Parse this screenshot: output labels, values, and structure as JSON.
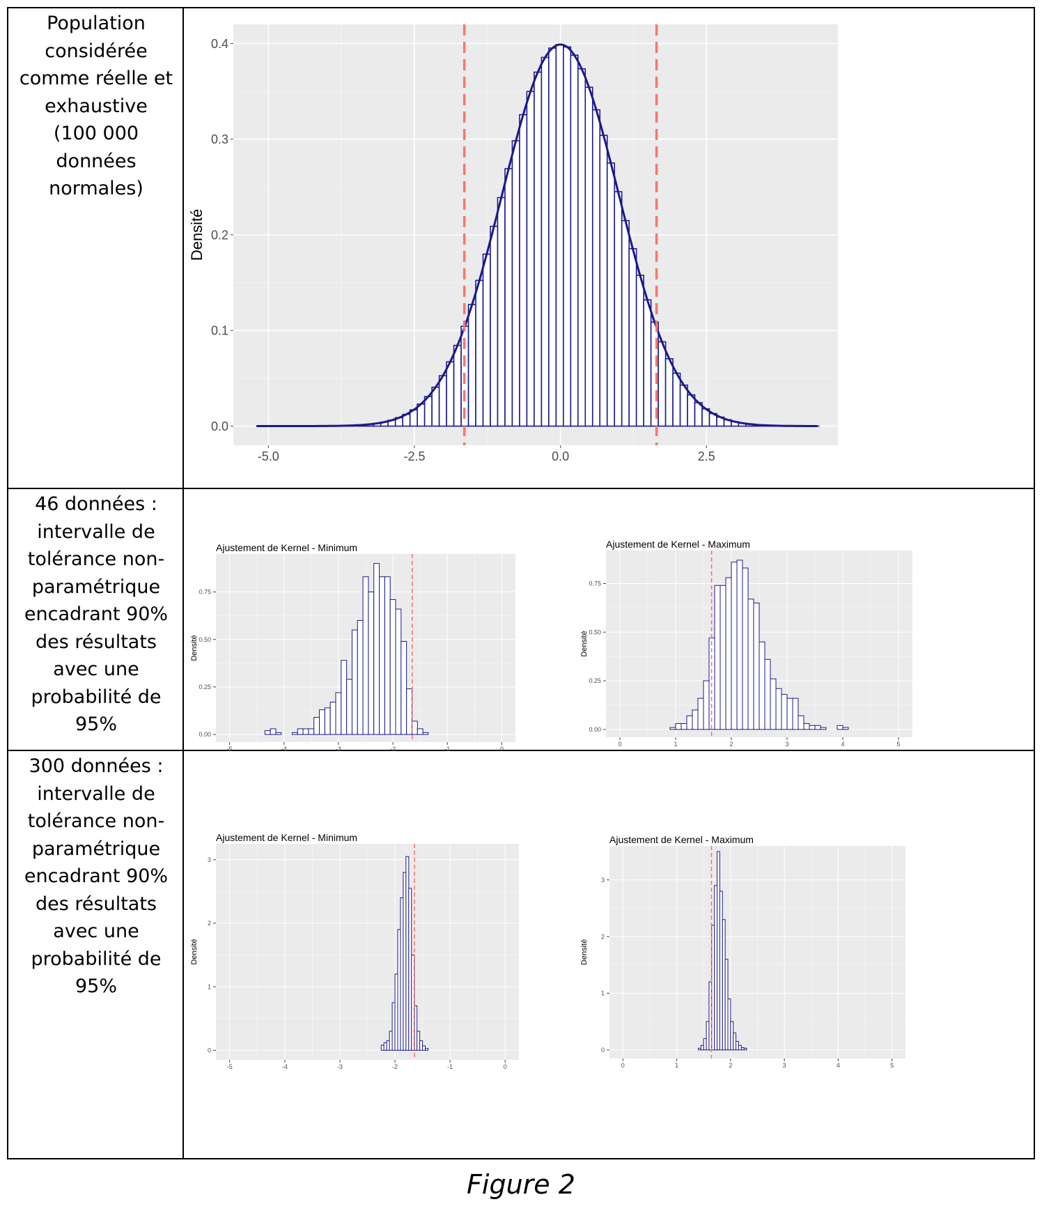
{
  "table": {
    "rows": [
      {
        "label": "Population\nconsidérée\ncomme réelle et\nexhaustive\n(100 000\ndonnées\nnormales)"
      },
      {
        "label": "46 données :\nintervalle de\ntolérance non-\nparamétrique\nencadrant 90%\ndes résultats\navec une\nprobabilité de\n95%"
      },
      {
        "label": "300 données :\nintervalle de\ntolérance non-\nparamétrique\nencadrant 90%\ndes résultats\navec une\nprobabilité de\n95%"
      }
    ]
  },
  "caption": "Figure 2",
  "colors": {
    "panel_bg": "#ebebeb",
    "grid": "#ffffff",
    "bar_stroke": "#1a1a8c",
    "curve": "#1a1a8c",
    "vline": "#f8766d"
  },
  "chart_data": [
    {
      "id": "population",
      "type": "bar",
      "title": "",
      "ylabel": "Densité",
      "xlabel": "",
      "bin_start": -5.2,
      "bin_width": 0.125,
      "bin_end": 4.4,
      "distribution": {
        "family": "normal",
        "mean": 0,
        "sd": 1
      },
      "density_curve": true,
      "vlines": [
        -1.645,
        1.645
      ],
      "xlim": [
        -5.6,
        4.75
      ],
      "ylim": [
        -0.02,
        0.42
      ],
      "xticks": [
        -5.0,
        -2.5,
        0.0,
        2.5
      ],
      "xtick_labels": [
        "-5.0",
        "-2.5",
        "0.0",
        "2.5"
      ],
      "yticks": [
        0.0,
        0.1,
        0.2,
        0.3,
        0.4
      ],
      "ytick_labels": [
        "0.0",
        "0.1",
        "0.2",
        "0.3",
        "0.4"
      ]
    },
    {
      "id": "min46",
      "type": "bar",
      "title": "Ajustement de Kernel - Minimum",
      "ylabel": "Densité",
      "xlabel": "",
      "x": [
        -4.3,
        -4.2,
        -4.1,
        -4.0,
        -3.9,
        -3.8,
        -3.7,
        -3.6,
        -3.5,
        -3.4,
        -3.3,
        -3.2,
        -3.1,
        -3.0,
        -2.9,
        -2.8,
        -2.7,
        -2.6,
        -2.5,
        -2.4,
        -2.3,
        -2.2,
        -2.1,
        -2.0,
        -1.9,
        -1.8,
        -1.7,
        -1.6,
        -1.5,
        -1.4,
        -1.3,
        -1.2
      ],
      "bin_width": 0.1,
      "values": [
        0.02,
        0.03,
        0.01,
        0.0,
        0.0,
        0.01,
        0.03,
        0.03,
        0.03,
        0.09,
        0.13,
        0.14,
        0.17,
        0.22,
        0.39,
        0.29,
        0.55,
        0.6,
        0.83,
        0.75,
        0.9,
        0.83,
        0.83,
        0.71,
        0.66,
        0.49,
        0.24,
        0.07,
        0.03,
        0.01,
        0.0,
        0.0
      ],
      "vlines": [
        -1.645
      ],
      "xlim": [
        -5.25,
        0.25
      ],
      "ylim": [
        -0.04,
        0.95
      ],
      "xticks": [
        -5,
        -4,
        -3,
        -2,
        -1,
        0
      ],
      "xtick_labels": [
        "-5",
        "-4",
        "-3",
        "-2",
        "-1",
        "0"
      ],
      "yticks": [
        0.0,
        0.25,
        0.5,
        0.75
      ],
      "ytick_labels": [
        "0.00",
        "0.25",
        "0.50",
        "0.75"
      ]
    },
    {
      "id": "max46",
      "type": "bar",
      "title": "Ajustement de Kernel - Maximum",
      "ylabel": "Densité",
      "xlabel": "",
      "x": [
        0.95,
        1.05,
        1.15,
        1.25,
        1.35,
        1.45,
        1.55,
        1.65,
        1.75,
        1.85,
        1.95,
        2.05,
        2.15,
        2.25,
        2.35,
        2.45,
        2.55,
        2.65,
        2.75,
        2.85,
        2.95,
        3.05,
        3.15,
        3.25,
        3.35,
        3.45,
        3.55,
        3.65,
        3.75,
        3.85,
        3.95,
        4.05,
        4.15
      ],
      "bin_width": 0.1,
      "values": [
        0.01,
        0.03,
        0.03,
        0.07,
        0.1,
        0.16,
        0.25,
        0.47,
        0.74,
        0.74,
        0.78,
        0.86,
        0.87,
        0.83,
        0.67,
        0.65,
        0.45,
        0.36,
        0.26,
        0.21,
        0.18,
        0.16,
        0.16,
        0.07,
        0.03,
        0.02,
        0.02,
        0.01,
        0.0,
        0.0,
        0.02,
        0.01,
        0.0
      ],
      "vlines": [
        1.645
      ],
      "xlim": [
        -0.25,
        5.25
      ],
      "ylim": [
        -0.04,
        0.92
      ],
      "xticks": [
        0,
        1,
        2,
        3,
        4,
        5
      ],
      "xtick_labels": [
        "0",
        "1",
        "2",
        "3",
        "4",
        "5"
      ],
      "yticks": [
        0.0,
        0.25,
        0.5,
        0.75
      ],
      "ytick_labels": [
        "0.00",
        "0.25",
        "0.50",
        "0.75"
      ]
    },
    {
      "id": "min300",
      "type": "bar",
      "title": "Ajustement de Kernel - Minimum",
      "ylabel": "Densité",
      "xlabel": "",
      "x": [
        -2.225,
        -2.175,
        -2.125,
        -2.075,
        -2.025,
        -1.975,
        -1.925,
        -1.875,
        -1.825,
        -1.775,
        -1.725,
        -1.675,
        -1.625,
        -1.575,
        -1.525,
        -1.475,
        -1.425
      ],
      "bin_width": 0.05,
      "values": [
        0.08,
        0.12,
        0.15,
        0.3,
        0.75,
        1.2,
        1.9,
        2.4,
        2.8,
        3.05,
        2.55,
        1.5,
        0.7,
        0.3,
        0.15,
        0.07,
        0.03
      ],
      "vlines": [
        -1.645
      ],
      "xlim": [
        -5.25,
        0.25
      ],
      "ylim": [
        -0.15,
        3.25
      ],
      "xticks": [
        -5,
        -4,
        -3,
        -2,
        -1,
        0
      ],
      "xtick_labels": [
        "-5",
        "-4",
        "-3",
        "-2",
        "-1",
        "0"
      ],
      "yticks": [
        0,
        1,
        2,
        3
      ],
      "ytick_labels": [
        "0",
        "1",
        "2",
        "3"
      ]
    },
    {
      "id": "max300",
      "type": "bar",
      "title": "Ajustement de Kernel - Maximum",
      "ylabel": "Densité",
      "xlabel": "",
      "x": [
        1.425,
        1.475,
        1.525,
        1.575,
        1.625,
        1.675,
        1.725,
        1.775,
        1.825,
        1.875,
        1.925,
        1.975,
        2.025,
        2.075,
        2.125,
        2.175,
        2.225,
        2.275
      ],
      "bin_width": 0.05,
      "values": [
        0.03,
        0.08,
        0.2,
        0.5,
        1.2,
        2.2,
        2.9,
        3.5,
        2.8,
        2.3,
        1.6,
        0.9,
        0.5,
        0.3,
        0.15,
        0.08,
        0.04,
        0.03
      ],
      "vlines": [
        1.645
      ],
      "xlim": [
        -0.25,
        5.25
      ],
      "ylim": [
        -0.15,
        3.6
      ],
      "xticks": [
        0,
        1,
        2,
        3,
        4,
        5
      ],
      "xtick_labels": [
        "0",
        "1",
        "2",
        "3",
        "4",
        "5"
      ],
      "yticks": [
        0,
        1,
        2,
        3
      ],
      "ytick_labels": [
        "0",
        "1",
        "2",
        "3"
      ]
    }
  ]
}
